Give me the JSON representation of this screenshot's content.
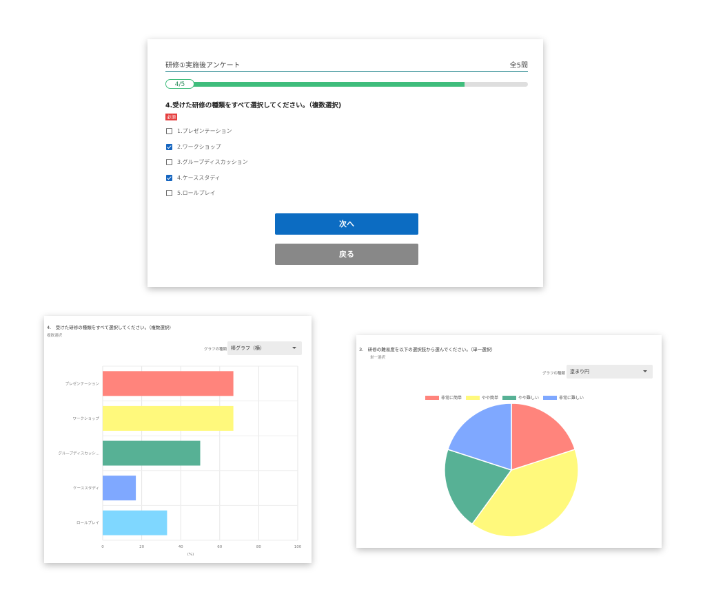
{
  "survey": {
    "title": "研修①実施後アンケート",
    "total": "全5問",
    "progress": {
      "label": "4/5",
      "fraction": 0.82
    },
    "question": "4.受けた研修の種類をすべて選択してください。（複数選択)",
    "required": "必須",
    "options": [
      {
        "label": "1.プレゼンテーション",
        "checked": false
      },
      {
        "label": "2.ワークショップ",
        "checked": true
      },
      {
        "label": "3.グループディスカッション",
        "checked": false
      },
      {
        "label": "4.ケーススタディ",
        "checked": true
      },
      {
        "label": "5.ロールプレイ",
        "checked": false
      }
    ],
    "next_label": "次へ",
    "back_label": "戻る"
  },
  "bar_card": {
    "question": "4.　受けた研修の種類をすべて選択してください。（複数選択)",
    "subtitle": "複数選択",
    "graph_type_label": "グラフの種類",
    "graph_type_value": "棒グラフ（横）"
  },
  "pie_card": {
    "question": "3.　研修の難易度を以下の選択肢から選んでください。（単一選択）",
    "subtitle": "単一選択",
    "graph_type_label": "グラフの種類",
    "graph_type_value": "塗まり円"
  },
  "chart_data": [
    {
      "type": "bar",
      "orientation": "horizontal",
      "categories": [
        "プレゼンテーション",
        "ワークショップ",
        "グループディスカッシ...",
        "ケーススタディ",
        "ロールプレイ"
      ],
      "values": [
        67,
        67,
        50,
        17,
        33
      ],
      "colors": [
        "#ff847c",
        "#fff97c",
        "#57b195",
        "#7fa8ff",
        "#7fd7ff"
      ],
      "xlim": [
        0,
        100
      ],
      "xticks": [
        0,
        20,
        40,
        60,
        80,
        100
      ],
      "xlabel": "(%)",
      "grid": true
    },
    {
      "type": "pie",
      "labels": [
        "非常に簡単",
        "やや簡単",
        "やや難しい",
        "非常に難しい"
      ],
      "values": [
        20,
        40,
        20,
        20
      ],
      "colors": [
        "#ff847c",
        "#fff97c",
        "#57b195",
        "#7fa8ff"
      ],
      "legend": "top"
    }
  ]
}
